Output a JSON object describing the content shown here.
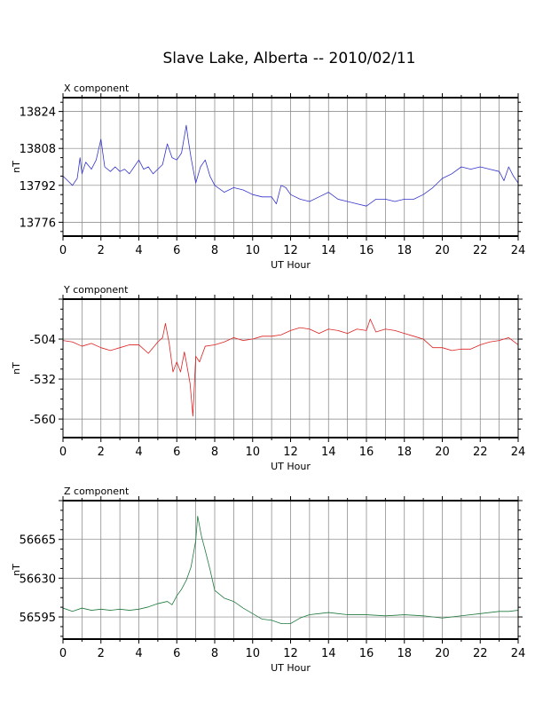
{
  "page": {
    "title": "Slave Lake, Alberta -- 2010/02/11"
  },
  "colors": {
    "background": "#ffffff",
    "grid": "#808080",
    "x_series": "#3333cc",
    "y_series": "#dd2222",
    "z_series": "#1f7a3d"
  },
  "chart_data": [
    {
      "type": "line",
      "title": "X component",
      "xlabel": "UT Hour",
      "ylabel": "nT",
      "xlim": [
        0,
        24
      ],
      "ylim": [
        13770,
        13830
      ],
      "xticks": [
        0,
        2,
        4,
        6,
        8,
        10,
        12,
        14,
        16,
        18,
        20,
        22,
        24
      ],
      "yticks": [
        13776,
        13792,
        13808,
        13824
      ],
      "grid": true,
      "series": [
        {
          "color": "#3333cc",
          "x": [
            0,
            0.25,
            0.5,
            0.75,
            0.9,
            1.0,
            1.2,
            1.5,
            1.75,
            2.0,
            2.2,
            2.5,
            2.75,
            3.0,
            3.25,
            3.5,
            3.75,
            4.0,
            4.25,
            4.5,
            4.75,
            5.0,
            5.25,
            5.5,
            5.75,
            6.0,
            6.25,
            6.5,
            6.6,
            6.75,
            7.0,
            7.25,
            7.5,
            7.75,
            8.0,
            8.5,
            9.0,
            9.5,
            10.0,
            10.5,
            11.0,
            11.25,
            11.5,
            11.75,
            12.0,
            12.5,
            13.0,
            13.5,
            14.0,
            14.5,
            15.0,
            15.5,
            16.0,
            16.5,
            17.0,
            17.5,
            18.0,
            18.5,
            19.0,
            19.5,
            20.0,
            20.5,
            21.0,
            21.5,
            22.0,
            22.5,
            23.0,
            23.25,
            23.5,
            23.75,
            24.0
          ],
          "values": [
            13796,
            13794,
            13792,
            13795,
            13804,
            13797,
            13802,
            13799,
            13803,
            13812,
            13800,
            13798,
            13800,
            13798,
            13799,
            13797,
            13800,
            13803,
            13799,
            13800,
            13797,
            13799,
            13801,
            13810,
            13804,
            13803,
            13806,
            13818,
            13812,
            13804,
            13793,
            13800,
            13803,
            13796,
            13792,
            13789,
            13791,
            13790,
            13788,
            13787,
            13787,
            13784,
            13792,
            13791,
            13788,
            13786,
            13785,
            13787,
            13789,
            13786,
            13785,
            13784,
            13783,
            13786,
            13786,
            13785,
            13786,
            13786,
            13788,
            13791,
            13795,
            13797,
            13800,
            13799,
            13800,
            13799,
            13798,
            13794,
            13800,
            13796,
            13793
          ]
        }
      ]
    },
    {
      "type": "line",
      "title": "Y component",
      "xlabel": "UT Hour",
      "ylabel": "nT",
      "xlim": [
        0,
        24
      ],
      "ylim": [
        -573,
        -476
      ],
      "xticks": [
        0,
        2,
        4,
        6,
        8,
        10,
        12,
        14,
        16,
        18,
        20,
        22,
        24
      ],
      "yticks": [
        -504,
        -532,
        -560
      ],
      "grid": true,
      "series": [
        {
          "color": "#dd2222",
          "x": [
            0,
            0.5,
            1.0,
            1.5,
            2.0,
            2.5,
            3.0,
            3.5,
            4.0,
            4.5,
            5.0,
            5.25,
            5.4,
            5.6,
            5.8,
            6.0,
            6.2,
            6.4,
            6.5,
            6.7,
            6.85,
            7.0,
            7.2,
            7.5,
            8.0,
            8.5,
            9.0,
            9.5,
            10.0,
            10.5,
            11.0,
            11.5,
            12.0,
            12.5,
            13.0,
            13.5,
            14.0,
            14.5,
            15.0,
            15.5,
            16.0,
            16.2,
            16.5,
            17.0,
            17.5,
            18.0,
            18.5,
            19.0,
            19.5,
            20.0,
            20.5,
            21.0,
            21.5,
            22.0,
            22.5,
            23.0,
            23.5,
            24.0
          ],
          "values": [
            -505,
            -506,
            -509,
            -507,
            -510,
            -512,
            -510,
            -508,
            -508,
            -514,
            -506,
            -503,
            -493,
            -507,
            -527,
            -520,
            -527,
            -513,
            -520,
            -535,
            -558,
            -516,
            -520,
            -509,
            -508,
            -506,
            -503,
            -505,
            -504,
            -502,
            -502,
            -501,
            -498,
            -496,
            -497,
            -500,
            -497,
            -498,
            -500,
            -497,
            -498,
            -490,
            -499,
            -497,
            -498,
            -500,
            -502,
            -504,
            -510,
            -510,
            -512,
            -511,
            -511,
            -508,
            -506,
            -505,
            -503,
            -508
          ]
        }
      ]
    },
    {
      "type": "line",
      "title": "Z component",
      "xlabel": "UT Hour",
      "ylabel": "nT",
      "xlim": [
        0,
        24
      ],
      "ylim": [
        56575,
        56700
      ],
      "xticks": [
        0,
        2,
        4,
        6,
        8,
        10,
        12,
        14,
        16,
        18,
        20,
        22,
        24
      ],
      "yticks": [
        56595,
        56630,
        56665
      ],
      "grid": true,
      "series": [
        {
          "color": "#1f7a3d",
          "x": [
            0,
            0.5,
            1.0,
            1.5,
            2.0,
            2.5,
            3.0,
            3.5,
            4.0,
            4.5,
            5.0,
            5.5,
            5.75,
            6.0,
            6.25,
            6.5,
            6.75,
            7.0,
            7.1,
            7.3,
            7.5,
            7.75,
            8.0,
            8.5,
            9.0,
            9.5,
            10.0,
            10.5,
            11.0,
            11.5,
            12.0,
            12.5,
            13.0,
            13.5,
            14.0,
            15.0,
            16.0,
            17.0,
            18.0,
            19.0,
            20.0,
            21.0,
            22.0,
            23.0,
            23.5,
            24.0
          ],
          "values": [
            56603,
            56600,
            56603,
            56601,
            56602,
            56601,
            56602,
            56601,
            56602,
            56604,
            56607,
            56609,
            56606,
            56614,
            56620,
            56628,
            56640,
            56664,
            56686,
            56668,
            56655,
            56638,
            56619,
            56612,
            56609,
            56603,
            56598,
            56593,
            56592,
            56589,
            56589,
            56594,
            56597,
            56598,
            56599,
            56597,
            56597,
            56596,
            56597,
            56596,
            56594,
            56596,
            56598,
            56600,
            56600,
            56601
          ]
        }
      ]
    }
  ]
}
